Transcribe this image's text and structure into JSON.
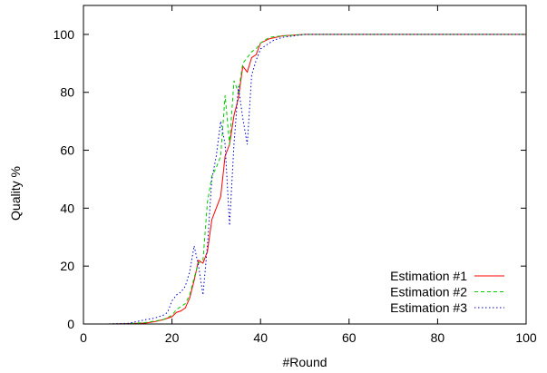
{
  "chart_data": {
    "type": "line",
    "title": "",
    "xlabel": "#Round",
    "ylabel": "Quality %",
    "xlim": [
      0,
      100
    ],
    "ylim": [
      0,
      110
    ],
    "x_ticks": [
      0,
      20,
      40,
      60,
      80,
      100
    ],
    "y_ticks": [
      0,
      20,
      40,
      60,
      80,
      100
    ],
    "grid": false,
    "legend_position": "bottom-right",
    "series": [
      {
        "name": "Estimation #1",
        "color": "#ff0000",
        "dash": "solid",
        "x": [
          5,
          10,
          14,
          16,
          18,
          20,
          21,
          22,
          23,
          24,
          25,
          26,
          27,
          28,
          29,
          30,
          31,
          32,
          33,
          34,
          35,
          36,
          37,
          38,
          39,
          40,
          42,
          45,
          50,
          60,
          100
        ],
        "y": [
          0,
          0.1,
          0.3,
          0.8,
          1.5,
          2.5,
          4,
          4.5,
          5.5,
          9,
          15,
          22,
          21,
          25,
          36,
          40,
          44,
          58,
          62,
          72,
          78,
          89,
          87,
          92,
          93,
          97,
          98.5,
          99.5,
          100,
          100,
          100
        ]
      },
      {
        "name": "Estimation #2",
        "color": "#00cc00",
        "dash": "4,3",
        "x": [
          5,
          10,
          14,
          16,
          18,
          20,
          21,
          22,
          23,
          24,
          25,
          26,
          27,
          28,
          29,
          30,
          31,
          32,
          33,
          34,
          35,
          36,
          37,
          38,
          39,
          40,
          42,
          45,
          50,
          60,
          100
        ],
        "y": [
          0,
          0.1,
          0.5,
          1,
          1.5,
          3,
          5,
          6,
          7,
          10,
          16,
          21,
          22,
          42,
          51,
          54,
          58,
          79,
          62,
          84,
          80,
          90,
          92,
          94,
          95,
          97,
          99,
          99.5,
          100,
          100,
          100
        ]
      },
      {
        "name": "Estimation #3",
        "color": "#0000cc",
        "dash": "1.5,2.5",
        "x": [
          5,
          10,
          12,
          14,
          16,
          18,
          19,
          20,
          21,
          22,
          23,
          24,
          25,
          26,
          27,
          28,
          29,
          30,
          31,
          32,
          33,
          34,
          35,
          36,
          37,
          38,
          39,
          40,
          41,
          42,
          43,
          45,
          50,
          60,
          100
        ],
        "y": [
          0,
          0.2,
          0.8,
          1.5,
          2,
          3,
          4,
          8,
          10,
          11,
          13,
          18,
          27,
          20,
          10,
          27,
          50,
          58,
          70,
          62,
          34,
          62,
          82,
          71,
          62,
          86,
          91,
          95,
          96,
          97,
          98,
          99,
          100,
          100,
          100
        ]
      }
    ]
  }
}
